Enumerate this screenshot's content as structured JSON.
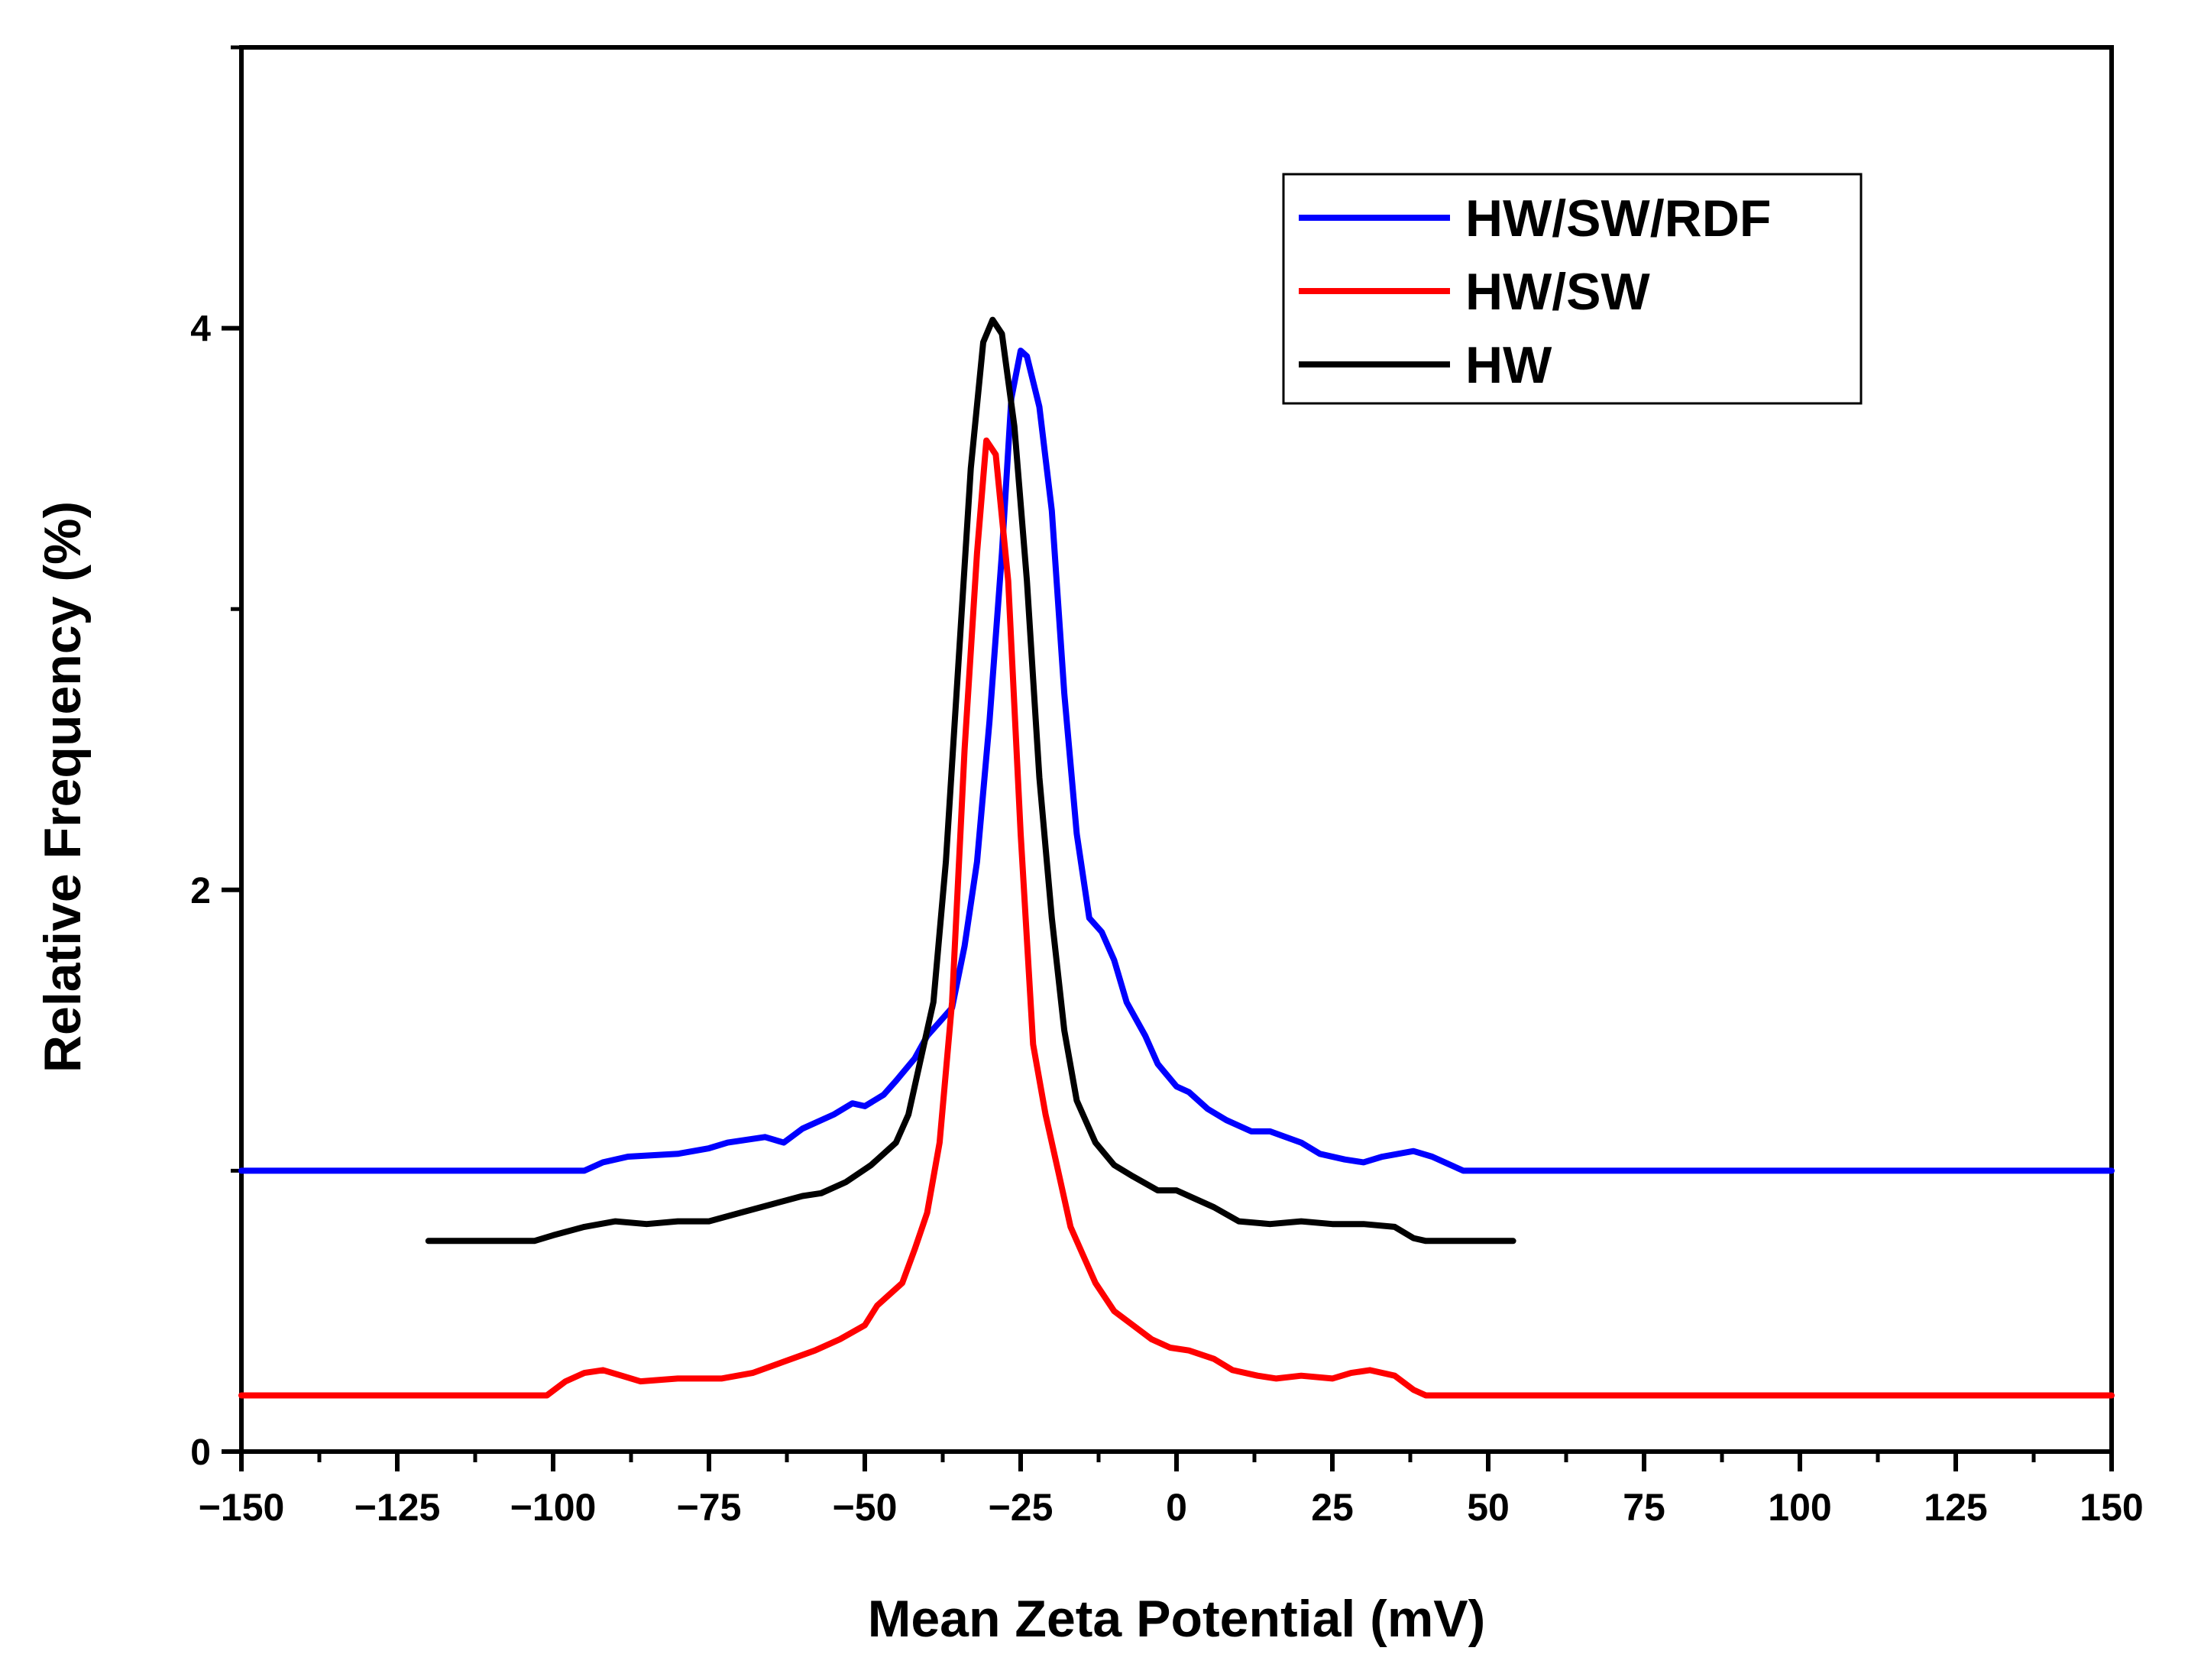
{
  "chart_data": {
    "type": "line",
    "title": "",
    "xlabel": "Mean Zeta Potential (mV)",
    "ylabel": "Relative Frequency (%)",
    "xlim": [
      -150,
      150
    ],
    "ylim": [
      0,
      5
    ],
    "x_ticks": [
      -150,
      -125,
      -100,
      -75,
      -50,
      -25,
      0,
      25,
      50,
      75,
      100,
      125,
      150
    ],
    "x_tick_labels": [
      "−150",
      "−125",
      "−100",
      "−75",
      "−50",
      "−25",
      "0",
      "25",
      "50",
      "75",
      "100",
      "125",
      "150"
    ],
    "y_ticks": [
      0,
      2,
      4
    ],
    "y_tick_labels": [
      "0",
      "2",
      "4"
    ],
    "grid": false,
    "legend_position": "top-right",
    "series": [
      {
        "name": "HW/SW/RDF",
        "color": "#0000ff",
        "points": [
          [
            -150,
            1.0
          ],
          [
            -95,
            1.0
          ],
          [
            -92,
            1.03
          ],
          [
            -88,
            1.05
          ],
          [
            -80,
            1.06
          ],
          [
            -75,
            1.08
          ],
          [
            -72,
            1.1
          ],
          [
            -66,
            1.12
          ],
          [
            -63,
            1.1
          ],
          [
            -60,
            1.15
          ],
          [
            -55,
            1.2
          ],
          [
            -52,
            1.24
          ],
          [
            -50,
            1.23
          ],
          [
            -47,
            1.27
          ],
          [
            -45,
            1.32
          ],
          [
            -42,
            1.4
          ],
          [
            -40,
            1.48
          ],
          [
            -38,
            1.53
          ],
          [
            -36,
            1.58
          ],
          [
            -34,
            1.8
          ],
          [
            -32,
            2.1
          ],
          [
            -30,
            2.6
          ],
          [
            -28,
            3.2
          ],
          [
            -26.5,
            3.75
          ],
          [
            -25,
            3.92
          ],
          [
            -24,
            3.9
          ],
          [
            -22,
            3.72
          ],
          [
            -20,
            3.35
          ],
          [
            -18,
            2.7
          ],
          [
            -16,
            2.2
          ],
          [
            -14,
            1.9
          ],
          [
            -12,
            1.85
          ],
          [
            -10,
            1.75
          ],
          [
            -8,
            1.6
          ],
          [
            -5,
            1.48
          ],
          [
            -3,
            1.38
          ],
          [
            0,
            1.3
          ],
          [
            2,
            1.28
          ],
          [
            5,
            1.22
          ],
          [
            8,
            1.18
          ],
          [
            12,
            1.14
          ],
          [
            15,
            1.14
          ],
          [
            20,
            1.1
          ],
          [
            23,
            1.06
          ],
          [
            27,
            1.04
          ],
          [
            30,
            1.03
          ],
          [
            33,
            1.05
          ],
          [
            38,
            1.07
          ],
          [
            41,
            1.05
          ],
          [
            46,
            1.0
          ],
          [
            150,
            1.0
          ]
        ]
      },
      {
        "name": "HW/SW",
        "color": "#ff0000",
        "points": [
          [
            -150,
            0.2
          ],
          [
            -101,
            0.2
          ],
          [
            -98,
            0.25
          ],
          [
            -95,
            0.28
          ],
          [
            -92,
            0.29
          ],
          [
            -89,
            0.27
          ],
          [
            -86,
            0.25
          ],
          [
            -80,
            0.26
          ],
          [
            -73,
            0.26
          ],
          [
            -68,
            0.28
          ],
          [
            -63,
            0.32
          ],
          [
            -58,
            0.36
          ],
          [
            -54,
            0.4
          ],
          [
            -50,
            0.45
          ],
          [
            -48,
            0.52
          ],
          [
            -46,
            0.56
          ],
          [
            -44,
            0.6
          ],
          [
            -42,
            0.72
          ],
          [
            -40,
            0.85
          ],
          [
            -38,
            1.1
          ],
          [
            -36,
            1.6
          ],
          [
            -34,
            2.5
          ],
          [
            -32,
            3.2
          ],
          [
            -30.5,
            3.6
          ],
          [
            -29,
            3.55
          ],
          [
            -27,
            3.1
          ],
          [
            -25,
            2.2
          ],
          [
            -23,
            1.45
          ],
          [
            -21,
            1.2
          ],
          [
            -19,
            1.0
          ],
          [
            -17,
            0.8
          ],
          [
            -15,
            0.7
          ],
          [
            -13,
            0.6
          ],
          [
            -10,
            0.5
          ],
          [
            -7,
            0.45
          ],
          [
            -4,
            0.4
          ],
          [
            -1,
            0.37
          ],
          [
            2,
            0.36
          ],
          [
            6,
            0.33
          ],
          [
            9,
            0.29
          ],
          [
            13,
            0.27
          ],
          [
            16,
            0.26
          ],
          [
            20,
            0.27
          ],
          [
            25,
            0.26
          ],
          [
            28,
            0.28
          ],
          [
            31,
            0.29
          ],
          [
            35,
            0.27
          ],
          [
            38,
            0.22
          ],
          [
            40,
            0.2
          ],
          [
            150,
            0.2
          ]
        ]
      },
      {
        "name": "HW",
        "color": "#000000",
        "points": [
          [
            -120,
            0.75
          ],
          [
            -103,
            0.75
          ],
          [
            -100,
            0.77
          ],
          [
            -95,
            0.8
          ],
          [
            -90,
            0.82
          ],
          [
            -85,
            0.81
          ],
          [
            -80,
            0.82
          ],
          [
            -75,
            0.82
          ],
          [
            -70,
            0.85
          ],
          [
            -65,
            0.88
          ],
          [
            -60,
            0.91
          ],
          [
            -57,
            0.92
          ],
          [
            -53,
            0.96
          ],
          [
            -49,
            1.02
          ],
          [
            -45,
            1.1
          ],
          [
            -43,
            1.2
          ],
          [
            -41,
            1.4
          ],
          [
            -39,
            1.6
          ],
          [
            -37,
            2.1
          ],
          [
            -35,
            2.8
          ],
          [
            -33,
            3.5
          ],
          [
            -31,
            3.95
          ],
          [
            -29.5,
            4.03
          ],
          [
            -28,
            3.98
          ],
          [
            -26,
            3.65
          ],
          [
            -24,
            3.1
          ],
          [
            -22,
            2.4
          ],
          [
            -20,
            1.9
          ],
          [
            -18,
            1.5
          ],
          [
            -16,
            1.25
          ],
          [
            -13,
            1.1
          ],
          [
            -10,
            1.02
          ],
          [
            -7,
            0.98
          ],
          [
            -3,
            0.93
          ],
          [
            0,
            0.93
          ],
          [
            3,
            0.9
          ],
          [
            6,
            0.87
          ],
          [
            10,
            0.82
          ],
          [
            15,
            0.81
          ],
          [
            20,
            0.82
          ],
          [
            25,
            0.81
          ],
          [
            30,
            0.81
          ],
          [
            35,
            0.8
          ],
          [
            38,
            0.76
          ],
          [
            40,
            0.75
          ],
          [
            54,
            0.75
          ]
        ]
      }
    ]
  }
}
